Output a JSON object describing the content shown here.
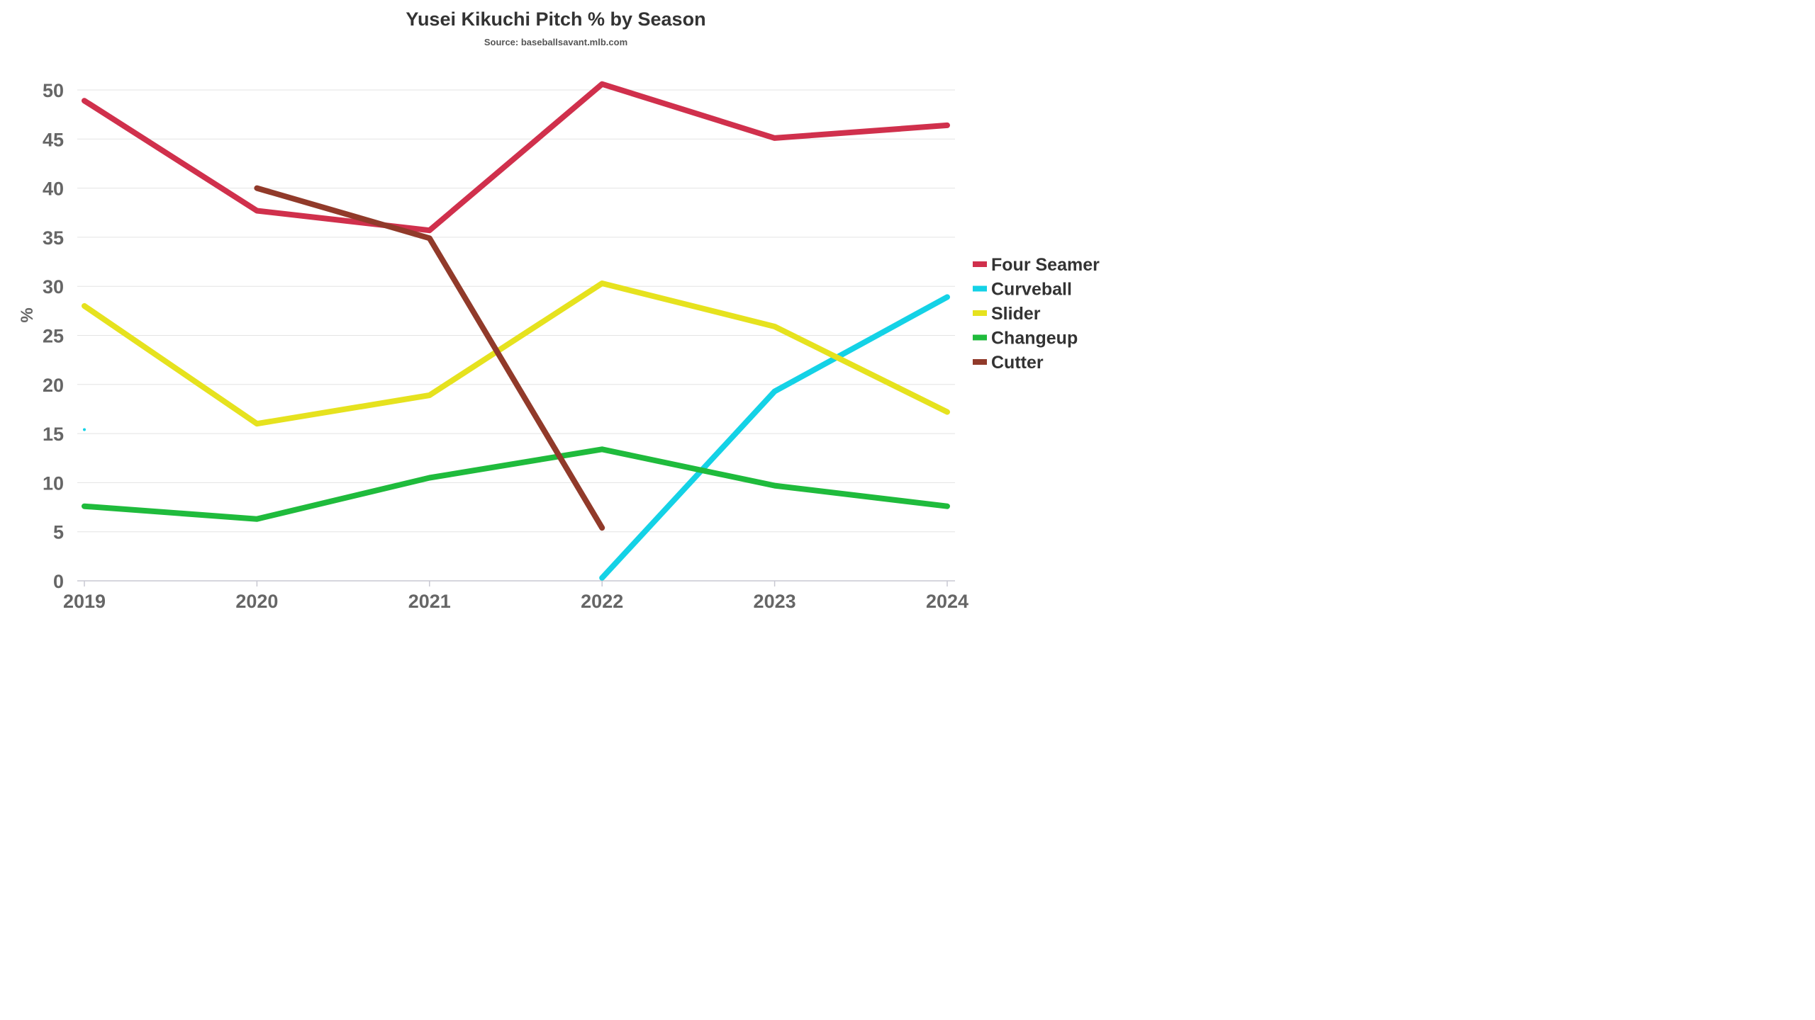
{
  "chart_data": {
    "type": "line",
    "title": "Yusei Kikuchi Pitch % by Season",
    "subtitle": "Source: baseballsavant.mlb.com",
    "xlabel": "",
    "ylabel": "%",
    "ylim": [
      0,
      50
    ],
    "yticks": [
      "0",
      "5",
      "10",
      "15",
      "20",
      "25",
      "30",
      "35",
      "40",
      "45",
      "50"
    ],
    "x": [
      "2019",
      "2020",
      "2021",
      "2022",
      "2023",
      "2024"
    ],
    "grid": true,
    "legend_position": "right",
    "series": [
      {
        "name": "Four Seamer",
        "color": "#d0304c",
        "values": [
          48.9,
          37.7,
          35.7,
          50.6,
          45.1,
          46.4
        ]
      },
      {
        "name": "Curveball",
        "color": "#14d2e6",
        "values": [
          15.4,
          null,
          null,
          0.3,
          19.3,
          28.9
        ]
      },
      {
        "name": "Slider",
        "color": "#e6e21e",
        "values": [
          28.0,
          16.0,
          18.9,
          30.3,
          25.9,
          17.2
        ]
      },
      {
        "name": "Changeup",
        "color": "#1fbb3c",
        "values": [
          7.6,
          6.3,
          10.5,
          13.4,
          9.7,
          7.6
        ]
      },
      {
        "name": "Cutter",
        "color": "#913a2a",
        "values": [
          null,
          40.0,
          34.9,
          5.4,
          null,
          null
        ]
      }
    ]
  }
}
